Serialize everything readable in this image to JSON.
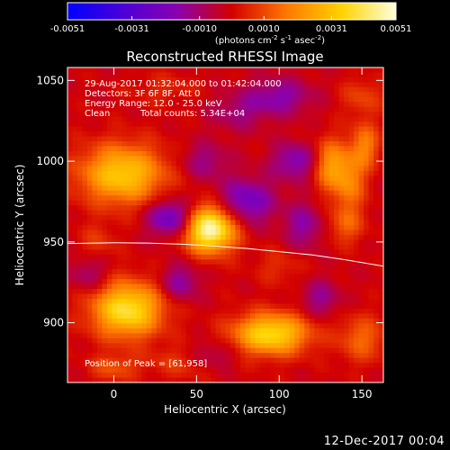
{
  "chart_data": {
    "type": "heatmap",
    "title": "Reconstructed RHESSI Image",
    "xlabel": "Heliocentric X (arcsec)",
    "ylabel": "Heliocentric Y (arcsec)",
    "xlim": [
      -28,
      163
    ],
    "ylim": [
      863,
      1058
    ],
    "xticks": [
      0,
      50,
      100,
      150
    ],
    "yticks": [
      900,
      950,
      1000,
      1050
    ],
    "colorbar": {
      "unit_prefix": "(photons cm",
      "unit_sup1": "-2",
      "unit_mid1": " s",
      "unit_sup2": "-1",
      "unit_mid2": " asec",
      "unit_sup3": "-2",
      "unit_suffix": ")",
      "range": [
        -0.0051,
        0.0051
      ],
      "ticks": [
        "-0.0051",
        "-0.0031",
        "-0.0010",
        "0.0010",
        "0.0031",
        "0.0051"
      ],
      "colors": [
        "#0000ff",
        "#4a00d8",
        "#8a00b0",
        "#d20000",
        "#ff7800",
        "#ffd200",
        "#ffffe0"
      ]
    },
    "annotations": {
      "time": "29-Aug-2017 01:32:04.000 to 01:42:04.000",
      "detectors": "Detectors: 3F 6F 8F, Att 0",
      "energy": "Energy Range: 12.0 - 25.0 keV",
      "method": "Clean",
      "counts": "Total counts: 5.34E+04",
      "peak": "Position of Peak = [61,958]"
    },
    "limb_curve": {
      "x": [
        -28,
        0,
        20,
        40,
        60,
        80,
        100,
        120,
        140,
        163
      ],
      "y": [
        949,
        949.5,
        949.3,
        948.7,
        947.5,
        946,
        944,
        942,
        939,
        935
      ]
    },
    "sources": [
      {
        "x": 58,
        "y": 958,
        "sx": 11,
        "sy": 10,
        "amp": 0.0051
      },
      {
        "x": 8,
        "y": 908,
        "sx": 15,
        "sy": 12,
        "amp": 0.004
      },
      {
        "x": 95,
        "y": 893,
        "sx": 16,
        "sy": 9,
        "amp": 0.0038
      },
      {
        "x": 5,
        "y": 992,
        "sx": 18,
        "sy": 13,
        "amp": 0.0034
      },
      {
        "x": 130,
        "y": 998,
        "sx": 7,
        "sy": 11,
        "amp": 0.0022
      },
      {
        "x": 142,
        "y": 988,
        "sx": 7,
        "sy": 14,
        "amp": 0.002
      },
      {
        "x": 152,
        "y": 1010,
        "sx": 6,
        "sy": 10,
        "amp": 0.0018
      },
      {
        "x": 140,
        "y": 960,
        "sx": 8,
        "sy": 8,
        "amp": 0.0012
      },
      {
        "x": 150,
        "y": 890,
        "sx": 10,
        "sy": 10,
        "amp": 0.0015
      },
      {
        "x": 150,
        "y": 1040,
        "sx": 9,
        "sy": 8,
        "amp": 0.001
      },
      {
        "x": 30,
        "y": 1045,
        "sx": 14,
        "sy": 7,
        "amp": 0.0006
      },
      {
        "x": -10,
        "y": 950,
        "sx": 8,
        "sy": 8,
        "amp": 0.0008
      },
      {
        "x": 40,
        "y": 875,
        "sx": 14,
        "sy": 7,
        "amp": 0.0008
      },
      {
        "x": 100,
        "y": 935,
        "sx": 10,
        "sy": 8,
        "amp": 0.0007
      },
      {
        "x": 0,
        "y": 872,
        "sx": 10,
        "sy": 6,
        "amp": 0.0012
      },
      {
        "x": 35,
        "y": 965,
        "sx": 10,
        "sy": 8,
        "amp": -0.0026
      },
      {
        "x": 80,
        "y": 975,
        "sx": 12,
        "sy": 10,
        "amp": -0.0022
      },
      {
        "x": 110,
        "y": 1000,
        "sx": 10,
        "sy": 8,
        "amp": -0.0018
      },
      {
        "x": 100,
        "y": 1040,
        "sx": 14,
        "sy": 8,
        "amp": -0.0016
      },
      {
        "x": 55,
        "y": 1000,
        "sx": 10,
        "sy": 8,
        "amp": -0.0012
      },
      {
        "x": 40,
        "y": 925,
        "sx": 8,
        "sy": 8,
        "amp": -0.0016
      },
      {
        "x": 115,
        "y": 960,
        "sx": 8,
        "sy": 10,
        "amp": -0.0015
      },
      {
        "x": 75,
        "y": 1030,
        "sx": 12,
        "sy": 8,
        "amp": -0.001
      },
      {
        "x": -15,
        "y": 930,
        "sx": 8,
        "sy": 8,
        "amp": -0.0011
      },
      {
        "x": 60,
        "y": 880,
        "sx": 10,
        "sy": 6,
        "amp": -0.001
      },
      {
        "x": 125,
        "y": 915,
        "sx": 8,
        "sy": 8,
        "amp": -0.0013
      }
    ]
  },
  "footer": {
    "timestamp": "12-Dec-2017 00:04"
  }
}
